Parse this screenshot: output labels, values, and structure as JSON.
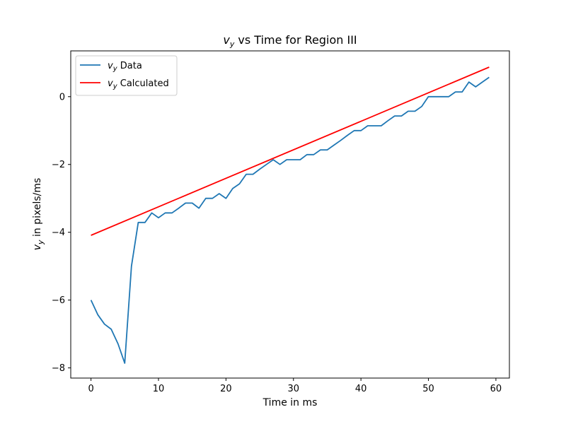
{
  "chart_data": {
    "type": "line",
    "title": {
      "v": "v",
      "sub": "y",
      "rest": " vs Time for Region III"
    },
    "xlabel": "Time in ms",
    "ylabel": {
      "v": "v",
      "sub": "y",
      "rest": " in pixels/ms"
    },
    "xlim": [
      -3,
      62
    ],
    "ylim": [
      -8.3,
      1.35
    ],
    "xticks": [
      0,
      10,
      20,
      30,
      40,
      50,
      60
    ],
    "xtick_labels": [
      "0",
      "10",
      "20",
      "30",
      "40",
      "50",
      "60"
    ],
    "yticks": [
      -8,
      -6,
      -4,
      -2,
      0
    ],
    "ytick_labels": [
      "−8",
      "−6",
      "−4",
      "−2",
      "0"
    ],
    "legend_position": "top-left",
    "grid": false,
    "series": [
      {
        "name": {
          "v": "v",
          "sub": "y",
          "rest": " Data"
        },
        "color": "#1f77b4",
        "x": [
          0,
          1,
          2,
          3,
          4,
          5,
          6,
          7,
          8,
          9,
          10,
          11,
          12,
          13,
          14,
          15,
          16,
          17,
          18,
          19,
          20,
          21,
          22,
          23,
          24,
          25,
          26,
          27,
          28,
          29,
          30,
          31,
          32,
          33,
          34,
          35,
          36,
          37,
          38,
          39,
          40,
          41,
          42,
          43,
          44,
          45,
          46,
          47,
          48,
          49,
          50,
          51,
          52,
          53,
          54,
          55,
          56,
          57,
          58,
          59
        ],
        "y": [
          -6.0,
          -6.43,
          -6.71,
          -6.86,
          -7.29,
          -7.86,
          -5.0,
          -3.71,
          -3.71,
          -3.43,
          -3.57,
          -3.43,
          -3.43,
          -3.29,
          -3.14,
          -3.14,
          -3.29,
          -3.0,
          -3.0,
          -2.86,
          -3.0,
          -2.71,
          -2.57,
          -2.29,
          -2.29,
          -2.14,
          -2.0,
          -1.86,
          -2.0,
          -1.86,
          -1.86,
          -1.86,
          -1.71,
          -1.71,
          -1.57,
          -1.57,
          -1.43,
          -1.29,
          -1.14,
          -1.0,
          -1.0,
          -0.86,
          -0.86,
          -0.86,
          -0.71,
          -0.57,
          -0.57,
          -0.43,
          -0.43,
          -0.29,
          0.0,
          0.0,
          0.0,
          0.0,
          0.14,
          0.14,
          0.43,
          0.29,
          0.43,
          0.57
        ]
      },
      {
        "name": {
          "v": "v",
          "sub": "y",
          "rest": " Calculated"
        },
        "color": "#ff0000",
        "x": [
          0,
          59
        ],
        "y": [
          -4.09,
          0.87
        ]
      }
    ]
  }
}
